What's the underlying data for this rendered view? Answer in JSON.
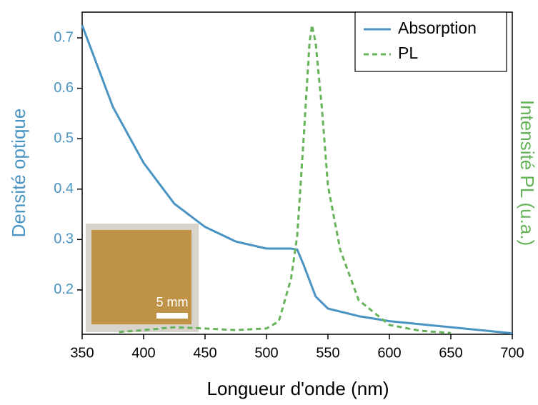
{
  "chart_data": {
    "type": "line",
    "xlabel": "Longueur d'onde (nm)",
    "ylabel": "Densité optique",
    "y2label": "Intensité PL (u.a.)",
    "inset_label": "5 mm",
    "legend": "upper right",
    "xlim": [
      350,
      700
    ],
    "xticks": [
      350,
      400,
      450,
      500,
      550,
      600,
      650,
      700
    ],
    "ylim": [
      0.112,
      0.751
    ],
    "yticks": [
      0.2,
      0.3,
      0.4,
      0.5,
      0.6,
      0.7
    ],
    "y2lim": [
      0,
      1
    ],
    "series": [
      {
        "name": "Absorption",
        "color": "#4a94c4",
        "style": "solid",
        "x": [
          350,
          375,
          400,
          425,
          450,
          475,
          500,
          520,
          525,
          530,
          540,
          550,
          575,
          600,
          650,
          700
        ],
        "values": [
          0.725,
          0.563,
          0.452,
          0.371,
          0.325,
          0.296,
          0.282,
          0.282,
          0.28,
          0.251,
          0.187,
          0.163,
          0.148,
          0.138,
          0.126,
          0.114
        ]
      },
      {
        "name": "PL",
        "color": "#66b35a",
        "style": "dashed",
        "axis": "y2",
        "x": [
          380,
          400,
          425,
          450,
          475,
          500,
          510,
          520,
          525,
          530,
          535,
          537,
          540,
          545,
          550,
          560,
          575,
          600,
          625,
          650
        ],
        "values": [
          0.007,
          0.013,
          0.022,
          0.018,
          0.013,
          0.018,
          0.04,
          0.173,
          0.306,
          0.594,
          0.905,
          0.96,
          0.905,
          0.705,
          0.461,
          0.262,
          0.106,
          0.029,
          0.011,
          0.004
        ]
      }
    ]
  }
}
